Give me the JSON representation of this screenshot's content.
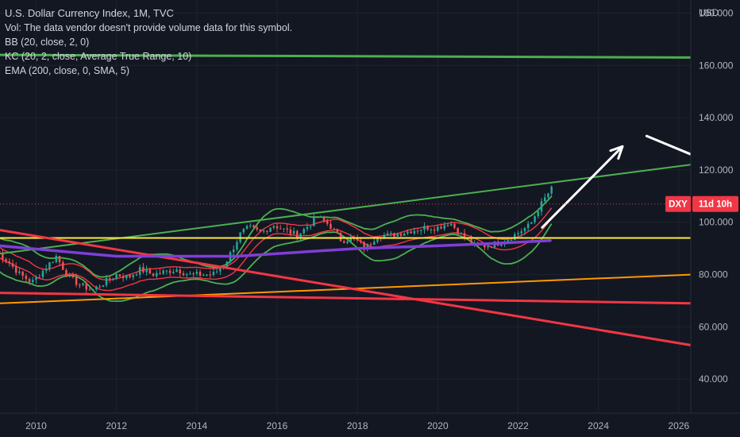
{
  "legend": {
    "title": "U.S. Dollar Currency Index, 1M, TVC",
    "vol": "Vol: The data vendor doesn't provide volume data for this symbol.",
    "bb": "BB (20, close, 2, 0)",
    "kc": "KC (20, 2, close, Average True Range, 10)",
    "ema": "EMA (200, close, 0, SMA, 5)"
  },
  "price_axis": {
    "currency": "USD"
  },
  "badge": {
    "symbol": "DXY",
    "countdown": "11d 10h",
    "color": "#f23645"
  },
  "colors": {
    "background": "#131722",
    "up_candle": "#26a69a",
    "down_candle": "#ef5350",
    "green_line": "#4caf50",
    "yellow_line": "#ffeb3b",
    "orange_line": "#ff9800",
    "red_line": "#f23645",
    "purple_ema": "#7e3fd6",
    "white_arrow": "#ffffff"
  },
  "chart_data": {
    "type": "line",
    "title": "U.S. Dollar Currency Index, 1M, TVC",
    "x_ticks": [
      "2010",
      "2012",
      "2014",
      "2016",
      "2018",
      "2020",
      "2022",
      "2024",
      "2026"
    ],
    "y_ticks": [
      "40.000",
      "60.000",
      "80.000",
      "100.000",
      "120.000",
      "140.000",
      "160.000",
      "180.000"
    ],
    "xlim": [
      2009.1,
      2026.3
    ],
    "ylim": [
      27,
      185
    ],
    "price_series": {
      "name": "DXY",
      "x": [
        2009.0,
        2009.3,
        2009.6,
        2009.9,
        2010.2,
        2010.5,
        2010.8,
        2011.1,
        2011.4,
        2011.7,
        2012.0,
        2012.3,
        2012.6,
        2012.9,
        2013.2,
        2013.5,
        2013.8,
        2014.1,
        2014.4,
        2014.7,
        2014.9,
        2015.1,
        2015.3,
        2015.6,
        2015.9,
        2016.2,
        2016.5,
        2016.8,
        2017.0,
        2017.3,
        2017.6,
        2017.9,
        2018.2,
        2018.5,
        2018.8,
        2019.1,
        2019.4,
        2019.7,
        2020.0,
        2020.3,
        2020.6,
        2020.9,
        2021.2,
        2021.5,
        2021.8,
        2022.0,
        2022.3,
        2022.5,
        2022.7,
        2022.85
      ],
      "y": [
        89,
        85,
        80,
        77,
        82,
        87,
        79,
        76,
        74,
        77,
        80,
        79,
        82,
        80,
        81,
        82,
        80,
        80,
        80,
        84,
        90,
        96,
        98,
        96,
        99,
        97,
        95,
        99,
        102,
        99,
        93,
        94,
        90,
        95,
        95,
        96,
        97,
        98,
        98,
        100,
        95,
        91,
        91,
        92,
        94,
        96,
        99,
        105,
        110,
        113
      ]
    },
    "lines": [
      {
        "label": "green horizontal",
        "x": [
          2009.1,
          2026.3
        ],
        "y": [
          164,
          163
        ]
      },
      {
        "label": "green rising trendline",
        "x": [
          2009.1,
          2026.3
        ],
        "y": [
          88,
          122
        ]
      },
      {
        "label": "yellow horizontal",
        "x": [
          2009.1,
          2026.3
        ],
        "y": [
          94,
          94
        ]
      },
      {
        "label": "orange rising line",
        "x": [
          2009.1,
          2026.3
        ],
        "y": [
          69,
          80
        ]
      },
      {
        "label": "red flat-declining line",
        "x": [
          2009.1,
          2026.3
        ],
        "y": [
          73,
          69
        ]
      },
      {
        "label": "red steep falling line",
        "x": [
          2009.1,
          2026.3
        ],
        "y": [
          97,
          53
        ]
      },
      {
        "label": "purple EMA",
        "x": [
          2009.1,
          2012.0,
          2015.0,
          2018.0,
          2020.0,
          2021.5,
          2022.8
        ],
        "y": [
          91,
          87,
          87,
          90,
          91,
          92,
          93
        ]
      }
    ],
    "annotations": [
      {
        "type": "arrow",
        "from_x": 2022.6,
        "from_y": 98,
        "to_x": 2024.6,
        "to_y": 129
      },
      {
        "type": "segment",
        "from_x": 2025.2,
        "from_y": 133,
        "to_x": 2026.3,
        "to_y": 126
      }
    ],
    "last_price_marker": 107
  }
}
